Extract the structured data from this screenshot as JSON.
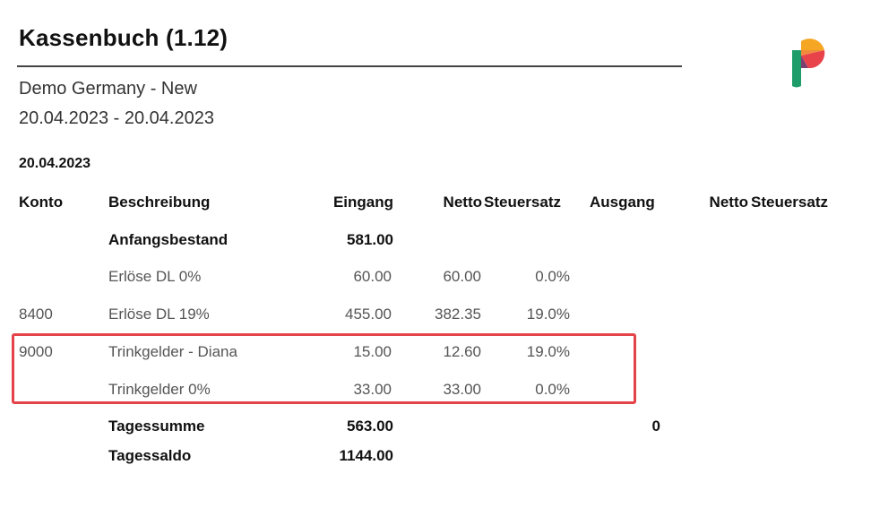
{
  "report": {
    "title": "Kassenbuch (1.12)",
    "company": "Demo Germany - New",
    "period": "20.04.2023 - 20.04.2023",
    "date": "20.04.2023"
  },
  "columns": {
    "konto": "Konto",
    "beschreibung": "Beschreibung",
    "eingang": "Eingang",
    "netto_in": "Netto",
    "steuersatz_in": "Steuersatz",
    "ausgang": "Ausgang",
    "netto_out": "Netto",
    "steuersatz_out": "Steuersatz"
  },
  "rows": [
    {
      "konto": "",
      "beschreibung": "Anfangsbestand",
      "eingang": "581.00",
      "netto": "",
      "steuersatz": "",
      "ausgang": ""
    },
    {
      "konto": "",
      "beschreibung": "Erlöse DL 0%",
      "eingang": "60.00",
      "netto": "60.00",
      "steuersatz": "0.0%",
      "ausgang": ""
    },
    {
      "konto": "8400",
      "beschreibung": "Erlöse DL 19%",
      "eingang": "455.00",
      "netto": "382.35",
      "steuersatz": "19.0%",
      "ausgang": ""
    },
    {
      "konto": "9000",
      "beschreibung": "Trinkgelder - Diana",
      "eingang": "15.00",
      "netto": "12.60",
      "steuersatz": "19.0%",
      "ausgang": ""
    },
    {
      "konto": "",
      "beschreibung": "Trinkgelder 0%",
      "eingang": "33.00",
      "netto": "33.00",
      "steuersatz": "0.0%",
      "ausgang": ""
    },
    {
      "konto": "",
      "beschreibung": "Tagessumme",
      "eingang": "563.00",
      "netto": "",
      "steuersatz": "",
      "ausgang": "0"
    },
    {
      "konto": "",
      "beschreibung": "Tagessaldo",
      "eingang": "1144.00",
      "netto": "",
      "steuersatz": "",
      "ausgang": ""
    }
  ],
  "colors": {
    "highlight": "#e5434a",
    "logo_orange": "#f5a623",
    "logo_red": "#e8434b",
    "logo_green": "#1e9d6a"
  },
  "icons": {
    "logo": "brand-logo-icon"
  }
}
